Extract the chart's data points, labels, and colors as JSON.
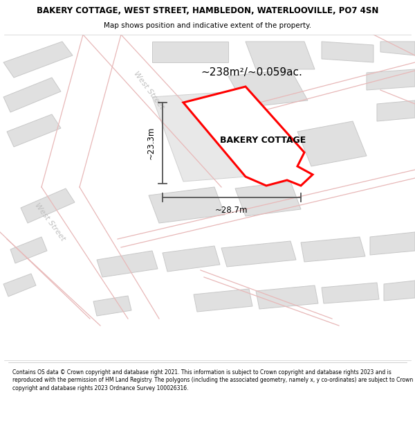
{
  "title": "BAKERY COTTAGE, WEST STREET, HAMBLEDON, WATERLOOVILLE, PO7 4SN",
  "subtitle": "Map shows position and indicative extent of the property.",
  "area_text": "~238m²/~0.059ac.",
  "property_label": "BAKERY COTTAGE",
  "dim_width": "~28.7m",
  "dim_height": "~23.3m",
  "footer": "Contains OS data © Crown copyright and database right 2021. This information is subject to Crown copyright and database rights 2023 and is reproduced with the permission of HM Land Registry. The polygons (including the associated geometry, namely x, y co-ordinates) are subject to Crown copyright and database rights 2023 Ordnance Survey 100026316.",
  "bg_color": "#ffffff",
  "map_bg": "#f7f7f7",
  "road_fill": "#f0f0f0",
  "road_line": "#e8b8b8",
  "building_fill": "#e0e0e0",
  "building_edge": "#c8c8c8",
  "property_fill": "#ffffff",
  "property_edge": "#ff0000",
  "street_label_color": "#c0c0c0",
  "dim_color": "#555555"
}
